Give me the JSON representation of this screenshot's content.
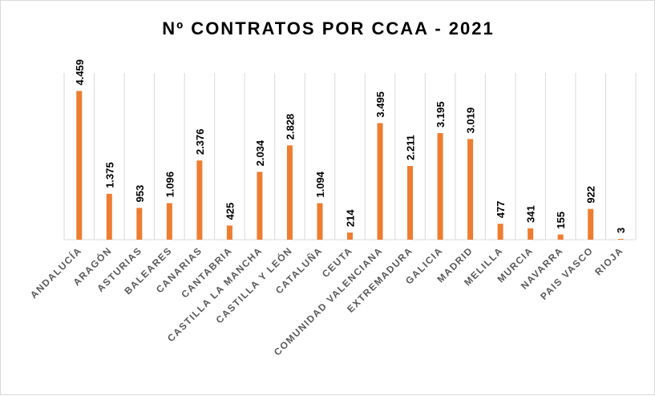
{
  "chart_data": {
    "type": "bar",
    "title": "Nº CONTRATOS POR CCAA - 2021",
    "categories": [
      "ANDALUCÍA",
      "ARAGÓN",
      "ASTURIAS",
      "BALEARES",
      "CANARIAS",
      "CANTABRIA",
      "CASTILLA LA MANCHA",
      "CASTILLA Y LEÓN",
      "CATALUÑA",
      "CEUTA",
      "COMUNIDAD VALENCIANA",
      "EXTREMADURA",
      "GALICIA",
      "MADRID",
      "MELILLA",
      "MURCIA",
      "NAVARRA",
      "PAIS VASCO",
      "RIOJA"
    ],
    "values": [
      4459,
      1375,
      953,
      1096,
      2376,
      425,
      2034,
      2828,
      1094,
      214,
      3495,
      2211,
      3195,
      3019,
      477,
      341,
      155,
      922,
      3
    ],
    "labels": [
      "4.459",
      "1.375",
      "953",
      "1.096",
      "2.376",
      "425",
      "2.034",
      "2.828",
      "1.094",
      "214",
      "3.495",
      "2.211",
      "3.195",
      "3.019",
      "477",
      "341",
      "155",
      "922",
      "3"
    ],
    "ylim": [
      0,
      5000
    ],
    "grid": "vertical",
    "bar_color": "#ed7d31",
    "grid_color": "#d9d9d9",
    "axis_color": "#d9d9d9",
    "label_color": "#595959"
  }
}
